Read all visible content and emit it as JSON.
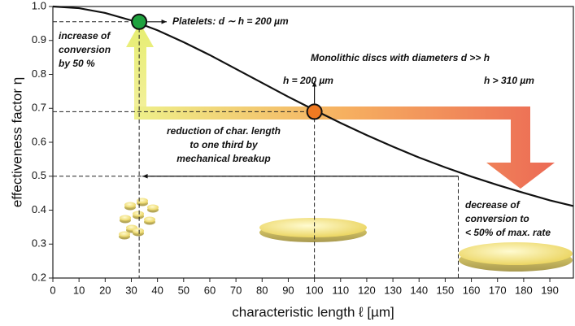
{
  "chart_data": {
    "type": "line",
    "x_label": "characteristic length ℓ [µm]",
    "y_label": "effectiveness factor η",
    "x": [
      0,
      10,
      20,
      30,
      40,
      50,
      60,
      70,
      80,
      90,
      100,
      110,
      120,
      130,
      140,
      150,
      160,
      170,
      180,
      190,
      199
    ],
    "series": [
      {
        "color": "#111111",
        "values": [
          1.0,
          0.995,
          0.981,
          0.959,
          0.93,
          0.895,
          0.857,
          0.816,
          0.775,
          0.734,
          0.695,
          0.657,
          0.621,
          0.587,
          0.555,
          0.526,
          0.499,
          0.474,
          0.451,
          0.429,
          0.412
        ]
      }
    ],
    "points": [
      {
        "x": 33,
        "y": 0.955,
        "color": "#1fa23f"
      },
      {
        "x": 100,
        "y": 0.69,
        "color": "#f07a22"
      }
    ],
    "reference_points": [
      {
        "x": 33,
        "y": 0.955
      },
      {
        "x": 100,
        "y": 0.69
      },
      {
        "x": 155,
        "y": 0.5
      }
    ],
    "xlim": [
      0,
      199
    ],
    "ylim": [
      0.2,
      1.0
    ],
    "xticks": [
      0,
      10,
      20,
      30,
      40,
      50,
      60,
      70,
      80,
      90,
      100,
      110,
      120,
      130,
      140,
      150,
      160,
      170,
      180,
      190
    ],
    "yticks": [
      0.2,
      0.3,
      0.4,
      0.5,
      0.6,
      0.7,
      0.8,
      0.9,
      {
        "value": 1,
        "label": "1.0"
      }
    ],
    "annotations": [
      {
        "lines": [
          "Platelets: d ∼ h = 200 µm"
        ]
      },
      {
        "lines": [
          "increase of",
          "conversion",
          "by 50 %"
        ]
      },
      {
        "lines": [
          "Monolithic discs with diameters d >> h"
        ]
      },
      {
        "lines": [
          "h = 200 µm"
        ]
      },
      {
        "lines": [
          "h > 310 µm"
        ]
      },
      {
        "lines": [
          "reduction of char. length",
          "to one third by",
          "mechanical breakup"
        ]
      },
      {
        "lines": [
          "decrease of",
          "conversion to",
          "< 50% of max. rate"
        ]
      }
    ]
  }
}
